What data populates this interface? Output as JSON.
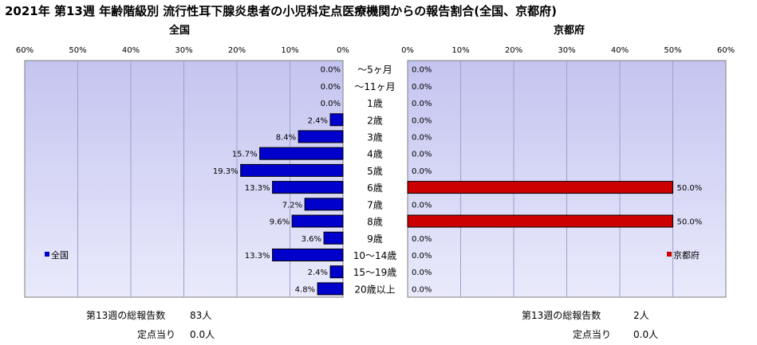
{
  "title": "2021年 第13週 年齢階級別 流行性耳下腺炎患者の小児科定点医療機関からの報告割合(全国、京都府)",
  "chart_data": [
    {
      "type": "bar",
      "orientation": "horizontal",
      "title": "全国",
      "categories": [
        "～5ヶ月",
        "～11ヶ月",
        "1歳",
        "2歳",
        "3歳",
        "4歳",
        "5歳",
        "6歳",
        "7歳",
        "8歳",
        "9歳",
        "10～14歳",
        "15～19歳",
        "20歳以上"
      ],
      "series": [
        {
          "name": "全国",
          "values": [
            0.0,
            0.0,
            0.0,
            2.4,
            8.4,
            15.7,
            19.3,
            13.3,
            7.2,
            9.6,
            3.6,
            13.3,
            2.4,
            4.8
          ],
          "color": "#0000cc"
        }
      ],
      "data_labels": [
        "0.0%",
        "0.0%",
        "0.0%",
        "2.4%",
        "8.4%",
        "15.7%",
        "19.3%",
        "13.3%",
        "7.2%",
        "9.6%",
        "3.6%",
        "13.3%",
        "2.4%",
        "4.8%"
      ],
      "xlim": [
        0,
        60
      ],
      "x_ticks": [
        "60%",
        "50%",
        "40%",
        "30%",
        "20%",
        "10%",
        "0%"
      ],
      "reversed_x": true,
      "legend": "bottom-left",
      "grid": true
    },
    {
      "type": "bar",
      "orientation": "horizontal",
      "title": "京都府",
      "categories": [
        "～5ヶ月",
        "～11ヶ月",
        "1歳",
        "2歳",
        "3歳",
        "4歳",
        "5歳",
        "6歳",
        "7歳",
        "8歳",
        "9歳",
        "10～14歳",
        "15～19歳",
        "20歳以上"
      ],
      "series": [
        {
          "name": "京都府",
          "values": [
            0.0,
            0.0,
            0.0,
            0.0,
            0.0,
            0.0,
            0.0,
            50.0,
            0.0,
            50.0,
            0.0,
            0.0,
            0.0,
            0.0
          ],
          "color": "#cc0000"
        }
      ],
      "data_labels": [
        "0.0%",
        "0.0%",
        "0.0%",
        "0.0%",
        "0.0%",
        "0.0%",
        "0.0%",
        "50.0%",
        "0.0%",
        "50.0%",
        "0.0%",
        "0.0%",
        "0.0%",
        "0.0%"
      ],
      "xlim": [
        0,
        60
      ],
      "x_ticks": [
        "0%",
        "10%",
        "20%",
        "30%",
        "40%",
        "50%",
        "60%"
      ],
      "reversed_x": false,
      "legend": "bottom-right",
      "grid": true
    }
  ],
  "stats": {
    "national": {
      "total_label": "第13週の総報告数",
      "total_value": "83人",
      "per_label": "定点当り",
      "per_value": "0.0人"
    },
    "kyoto": {
      "total_label": "第13週の総報告数",
      "total_value": "2人",
      "per_label": "定点当り",
      "per_value": "0.0人"
    }
  }
}
